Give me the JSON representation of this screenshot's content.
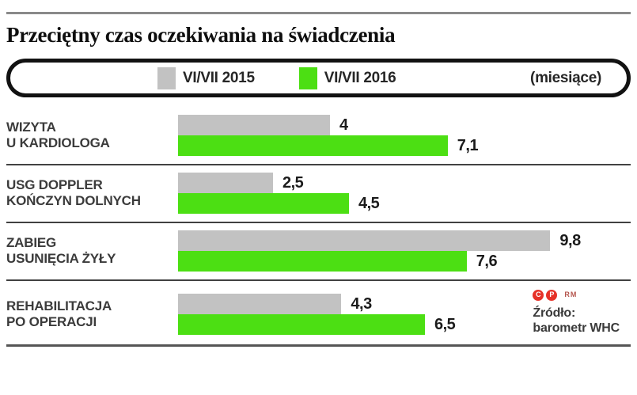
{
  "header": {
    "title": "Przeciętny czas oczekiwania na świadczenia"
  },
  "legend": {
    "series_2015": "VI/VII 2015",
    "series_2016": "VI/VII 2016",
    "unit_note": "(miesiące)"
  },
  "source": {
    "copyright_mark": "C",
    "phonogram_mark": "P",
    "rights_label": "RM",
    "line1": "Źródło:",
    "line2": "barometr WHC"
  },
  "colors": {
    "bar_2015": "#c2c2c2",
    "bar_2016": "#4cdf13",
    "accent_red": "#e63228"
  },
  "chart_data": {
    "type": "bar",
    "orientation": "horizontal",
    "title": "Przeciętny czas oczekiwania na świadczenia",
    "unit": "miesiące",
    "xlim": [
      0,
      10
    ],
    "grid": false,
    "legend_position": "top",
    "categories": [
      "WIZYTA U KARDIOLOGA",
      "USG DOPPLER KOŃCZYN DOLNYCH",
      "ZABIEG USUNIĘCIA ŻYŁY",
      "REHABILITACJA PO OPERACJI"
    ],
    "category_lines": [
      [
        "WIZYTA",
        "U KARDIOLOGA"
      ],
      [
        "USG DOPPLER",
        "KOŃCZYN DOLNYCH"
      ],
      [
        "ZABIEG",
        "USUNIĘCIA ŻYŁY"
      ],
      [
        "REHABILITACJA",
        "PO OPERACJI"
      ]
    ],
    "series": [
      {
        "name": "VI/VII 2015",
        "color": "#c2c2c2",
        "values": [
          4,
          2.5,
          9.8,
          4.3
        ],
        "labels": [
          "4",
          "2,5",
          "9,8",
          "4,3"
        ]
      },
      {
        "name": "VI/VII 2016",
        "color": "#4cdf13",
        "values": [
          7.1,
          4.5,
          7.6,
          6.5
        ],
        "labels": [
          "7,1",
          "4,5",
          "7,6",
          "6,5"
        ]
      }
    ]
  }
}
